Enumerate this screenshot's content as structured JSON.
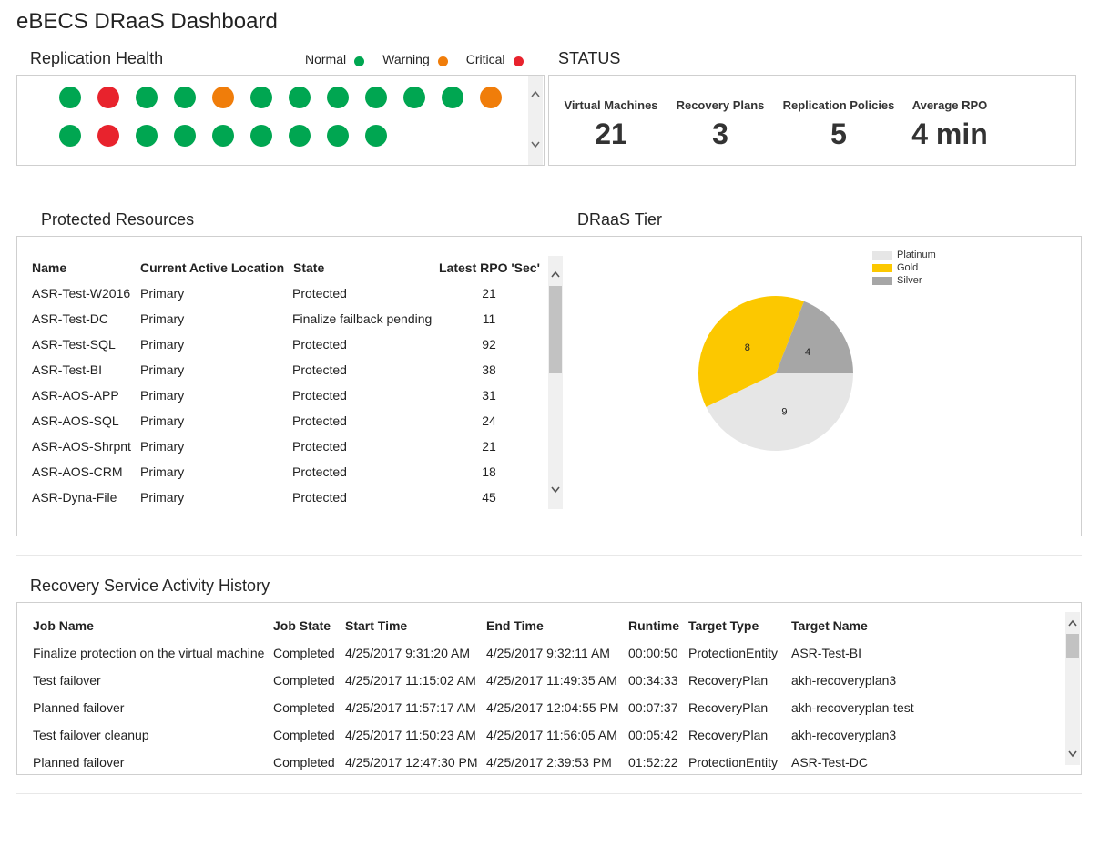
{
  "app": {
    "title": "eBECS DRaaS Dashboard"
  },
  "replication_health": {
    "title": "Replication Health",
    "legend": [
      {
        "label": "Normal",
        "color": "#00a651"
      },
      {
        "label": "Warning",
        "color": "#f07d0a"
      },
      {
        "label": "Critical",
        "color": "#e8232d"
      }
    ],
    "row1": [
      "normal",
      "critical",
      "normal",
      "normal",
      "warning",
      "normal",
      "normal",
      "normal",
      "normal",
      "normal",
      "normal",
      "warning"
    ],
    "row2": [
      "normal",
      "critical",
      "normal",
      "normal",
      "normal",
      "normal",
      "normal",
      "normal",
      "normal"
    ],
    "colors": {
      "normal": "#00a651",
      "warning": "#f07d0a",
      "critical": "#e8232d"
    }
  },
  "status": {
    "title": "STATUS",
    "items": [
      {
        "label": "Virtual Machines",
        "value": "21"
      },
      {
        "label": "Recovery Plans",
        "value": "3"
      },
      {
        "label": "Replication Policies",
        "value": "5"
      },
      {
        "label": "Average RPO",
        "value": "4 min"
      }
    ]
  },
  "protected_resources": {
    "title": "Protected Resources",
    "columns": [
      "Name",
      "Current Active Location",
      "State",
      "Latest RPO 'Sec'"
    ],
    "rows": [
      [
        "ASR-Test-W2016",
        "Primary",
        "Protected",
        "21"
      ],
      [
        "ASR-Test-DC",
        "Primary",
        "Finalize failback pending",
        "11"
      ],
      [
        "ASR-Test-SQL",
        "Primary",
        "Protected",
        "92"
      ],
      [
        "ASR-Test-BI",
        "Primary",
        "Protected",
        "38"
      ],
      [
        "ASR-AOS-APP",
        "Primary",
        "Protected",
        "31"
      ],
      [
        "ASR-AOS-SQL",
        "Primary",
        "Protected",
        "24"
      ],
      [
        "ASR-AOS-Shrpnt",
        "Primary",
        "Protected",
        "21"
      ],
      [
        "ASR-AOS-CRM",
        "Primary",
        "Protected",
        "18"
      ],
      [
        "ASR-Dyna-File",
        "Primary",
        "Protected",
        "45"
      ]
    ]
  },
  "draas_tier": {
    "title": "DRaaS Tier"
  },
  "chart_data": {
    "type": "pie",
    "title": "DRaaS Tier",
    "labels": [
      "Platinum",
      "Gold",
      "Silver"
    ],
    "values": [
      9,
      8,
      4
    ],
    "colors": [
      "#e6e6e6",
      "#fcc800",
      "#a6a6a6"
    ],
    "legend": "top-right"
  },
  "activity_history": {
    "title": "Recovery Service Activity History",
    "columns": [
      "Job Name",
      "Job State",
      "Start Time",
      "End Time",
      "Runtime",
      "Target Type",
      "Target Name"
    ],
    "rows": [
      [
        "Finalize protection on the virtual machine",
        "Completed",
        "4/25/2017 9:31:20 AM",
        "4/25/2017 9:32:11 AM",
        "00:00:50",
        "ProtectionEntity",
        "ASR-Test-BI"
      ],
      [
        "Test failover",
        "Completed",
        "4/25/2017 11:15:02 AM",
        "4/25/2017 11:49:35 AM",
        "00:34:33",
        "RecoveryPlan",
        "akh-recoveryplan3"
      ],
      [
        "Planned failover",
        "Completed",
        "4/25/2017 11:57:17 AM",
        "4/25/2017 12:04:55 PM",
        "00:07:37",
        "RecoveryPlan",
        "akh-recoveryplan-test"
      ],
      [
        "Test failover cleanup",
        "Completed",
        "4/25/2017 11:50:23 AM",
        "4/25/2017 11:56:05 AM",
        "00:05:42",
        "RecoveryPlan",
        "akh-recoveryplan3"
      ],
      [
        "Planned failover",
        "Completed",
        "4/25/2017 12:47:30 PM",
        "4/25/2017 2:39:53 PM",
        "01:52:22",
        "ProtectionEntity",
        "ASR-Test-DC"
      ]
    ]
  }
}
